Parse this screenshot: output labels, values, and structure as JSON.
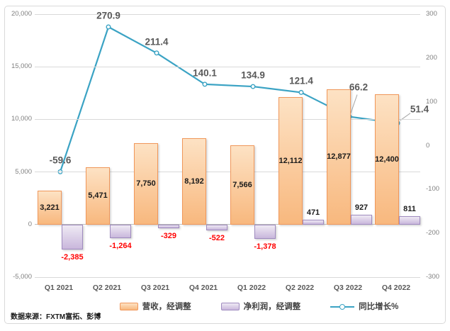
{
  "source_note": "数据来源：FXTM富拓、彭博",
  "colors": {
    "revenue_fill_light": "#FDE2C4",
    "revenue_fill_dark": "#F8B87E",
    "revenue_border": "#F0975A",
    "net_income_fill_light": "#EFEAF4",
    "net_income_fill_dark": "#C9B7DC",
    "net_income_border": "#9F8BBF",
    "growth_line": "#3BA3C4",
    "leader_line": "#A6A6A6",
    "negative_label": "#FF0000",
    "axis_text": "#808080",
    "category_text": "#595959",
    "line_label_text": "#595959",
    "gridline": "#D9D9D9"
  },
  "chart_data": {
    "type": "bar+line combo",
    "title": "",
    "categories": [
      "Q1 2021",
      "Q2 2021",
      "Q3 2021",
      "Q4 2021",
      "Q1 2022",
      "Q2 2022",
      "Q3 2022",
      "Q4 2022"
    ],
    "series": [
      {
        "name": "营收，经调整",
        "type": "bar",
        "axis": "left",
        "values": [
          3221,
          5471,
          7750,
          8192,
          7566,
          12112,
          12877,
          12400
        ],
        "labels": [
          "3,221",
          "5,471",
          "7,750",
          "8,192",
          "7,566",
          "12,112",
          "12,877",
          "12,400"
        ]
      },
      {
        "name": "净利润，经调整",
        "type": "bar",
        "axis": "left",
        "values": [
          -2385,
          -1264,
          -329,
          -522,
          -1378,
          471,
          927,
          811
        ],
        "labels": [
          "-2,385",
          "-1,264",
          "-329",
          "-522",
          "-1,378",
          "471",
          "927",
          "811"
        ]
      },
      {
        "name": "同比增长%",
        "type": "line",
        "axis": "right",
        "values": [
          -59.6,
          270.9,
          211.4,
          140.1,
          134.9,
          121.4,
          66.2,
          51.4
        ],
        "labels": [
          "-59.6",
          "270.9",
          "211.4",
          "140.1",
          "134.9",
          "121.4",
          "66.2",
          "51.4"
        ]
      }
    ],
    "left_axis": {
      "min": -5000,
      "max": 20000,
      "tick_values": [
        20000,
        15000,
        10000,
        5000,
        0,
        -5000
      ],
      "tick_labels": [
        "20,000",
        "15,000",
        "10,000",
        "5,000",
        "0",
        "-5,000"
      ]
    },
    "right_axis": {
      "min": -300,
      "max": 300,
      "tick_values": [
        300,
        200,
        100,
        0,
        -100,
        -200,
        -300
      ],
      "tick_labels": [
        "300",
        "200",
        "100",
        "0",
        "-100",
        "-200",
        "-300"
      ]
    },
    "grid": true,
    "legend_position": "bottom"
  }
}
